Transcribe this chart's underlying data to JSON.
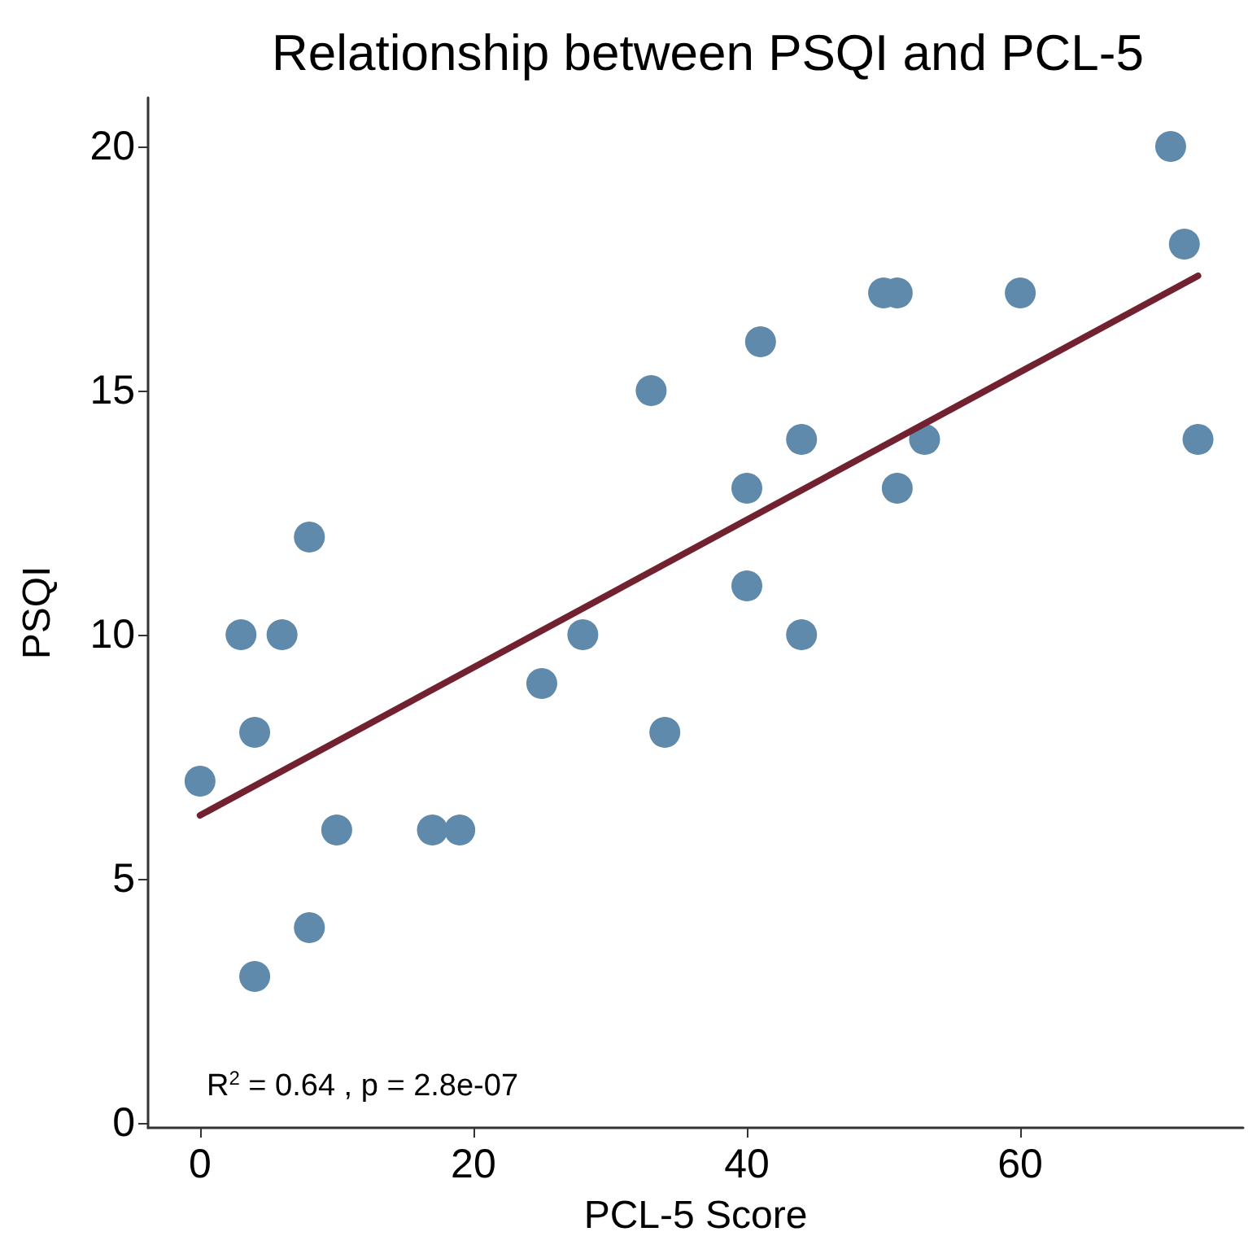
{
  "chart_data": {
    "type": "scatter",
    "title": "Relationship between PSQI and PCL-5",
    "xlabel": "PCL-5 Score",
    "ylabel": "PSQI",
    "annotations": [
      "R$^{2}$ = 0.64 , p = 2.8e-07"
    ],
    "xlim": [
      -3.8,
      76.3
    ],
    "xticks": [
      0,
      20,
      40,
      60
    ],
    "ylim": [
      -0.1,
      21
    ],
    "yticks": [
      0,
      5,
      10,
      15,
      20
    ],
    "grid": false,
    "series": [
      {
        "color": "#5f8aab",
        "marker": "circle",
        "x": [
          0,
          3,
          4,
          4,
          6,
          8,
          8,
          10,
          17,
          19,
          25,
          28,
          33,
          34,
          40,
          40,
          41,
          44,
          44,
          50,
          51,
          51,
          53,
          60,
          71,
          72,
          73
        ],
        "values": [
          7,
          10,
          8,
          3,
          10,
          12,
          4,
          6,
          6,
          6,
          9,
          10,
          15,
          8,
          13,
          11,
          16,
          14,
          10,
          17,
          17,
          13,
          14,
          17,
          20,
          18,
          14
        ]
      },
      {
        "type": "line",
        "color": "#722130",
        "x": [
          0,
          73
        ],
        "values": [
          6.3,
          17.35
        ]
      }
    ]
  }
}
